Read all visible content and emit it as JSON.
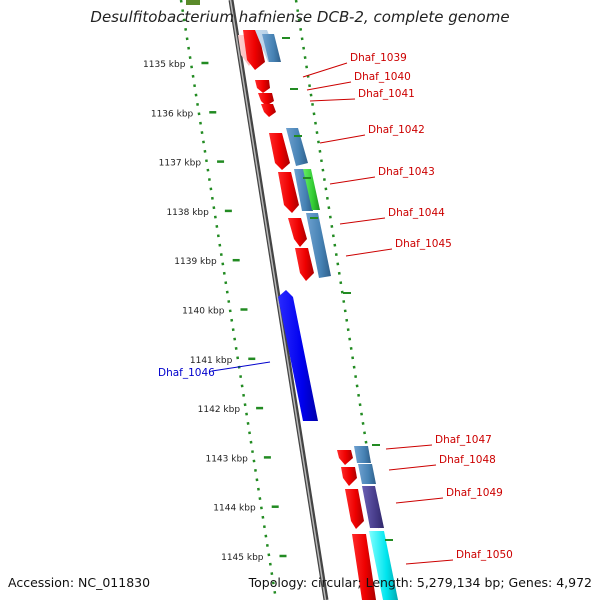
{
  "title": "Desulfitobacterium hafniense DCB-2, complete genome",
  "footer": {
    "accession": "Accession: NC_011830",
    "topology": "Topology: circular; Length: 5,279,134 bp; Genes: 4,972"
  },
  "colors": {
    "label": "#cc0000",
    "label_selected": "#0000cc",
    "gene_red": "#ff0000",
    "gene_blue": "#0000ee",
    "gene_steel": "#4682b4",
    "gene_green": "#33cc33",
    "gene_slate": "#483d8b",
    "gene_cyan": "#00e5ee",
    "ruler": "#228b22",
    "backbone": "#888888"
  },
  "ruler_ticks": [
    "1135 kbp",
    "1136 kbp",
    "1137 kbp",
    "1138 kbp",
    "1139 kbp",
    "1140 kbp",
    "1141 kbp",
    "1142 kbp",
    "1143 kbp",
    "1144 kbp",
    "1145 kbp"
  ],
  "gene_labels": [
    "Dhaf_1039",
    "Dhaf_1040",
    "Dhaf_1041",
    "Dhaf_1042",
    "Dhaf_1043",
    "Dhaf_1044",
    "Dhaf_1045",
    "Dhaf_1046",
    "Dhaf_1047",
    "Dhaf_1048",
    "Dhaf_1049",
    "Dhaf_1050"
  ],
  "selected_gene": "Dhaf_1046"
}
